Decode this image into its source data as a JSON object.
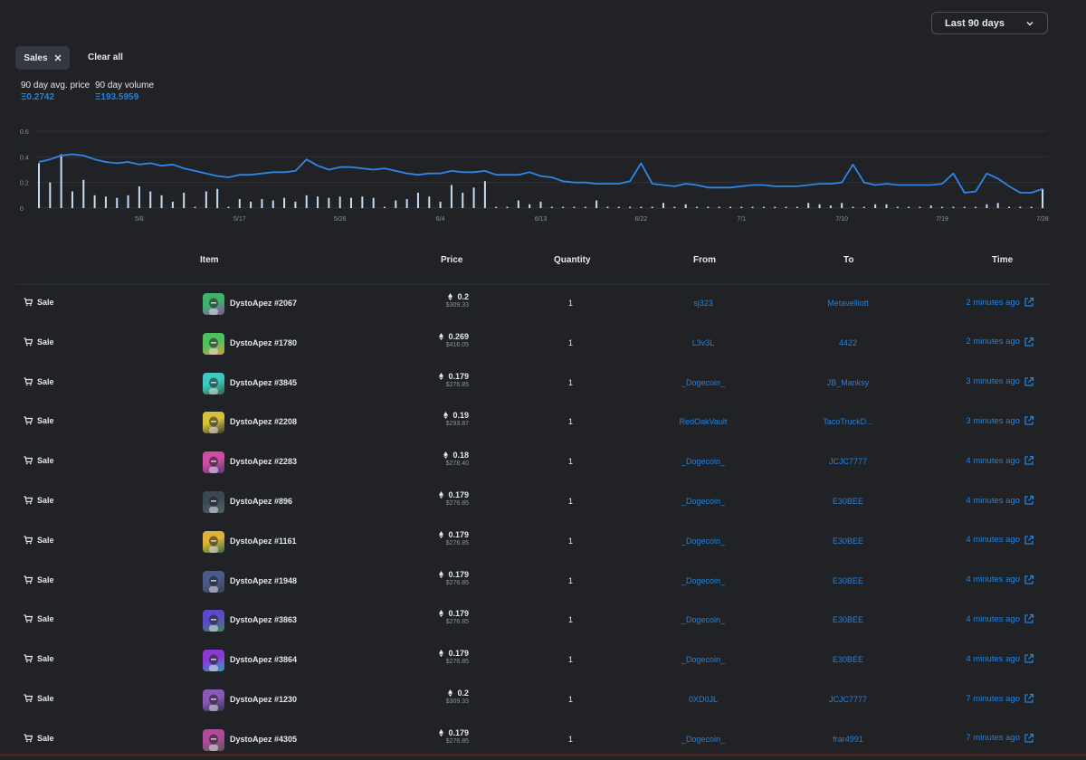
{
  "period_select": {
    "label": "Last 90 days"
  },
  "filter": {
    "chip_label": "Sales",
    "clear_label": "Clear all"
  },
  "stats": {
    "avg_label": "90 day avg. price",
    "avg_value": "Ξ0.2742",
    "vol_label": "90 day volume",
    "vol_value": "Ξ193.5959"
  },
  "colors": {
    "accent": "#2081e2",
    "bar": "#c4dcf8",
    "grid": "#2f3238",
    "line": "#2e86e8"
  },
  "chart_data": {
    "type": "line+bar",
    "y_ticks": [
      "0.6",
      "0.4",
      "0.2",
      "0"
    ],
    "ylim": [
      0,
      0.6
    ],
    "x_ticks": [
      "5/8",
      "5/17",
      "5/26",
      "6/4",
      "6/13",
      "6/22",
      "7/1",
      "7/10",
      "7/19",
      "7/28"
    ],
    "x_range": [
      0,
      90
    ],
    "x_tick_positions": [
      9,
      18,
      27,
      36,
      45,
      54,
      63,
      72,
      81,
      90
    ],
    "avg_price_line": [
      0.36,
      0.38,
      0.41,
      0.42,
      0.41,
      0.38,
      0.36,
      0.35,
      0.36,
      0.34,
      0.35,
      0.33,
      0.34,
      0.31,
      0.29,
      0.27,
      0.25,
      0.24,
      0.26,
      0.26,
      0.27,
      0.28,
      0.28,
      0.29,
      0.38,
      0.33,
      0.3,
      0.32,
      0.32,
      0.31,
      0.3,
      0.31,
      0.29,
      0.27,
      0.26,
      0.27,
      0.27,
      0.29,
      0.28,
      0.28,
      0.29,
      0.26,
      0.26,
      0.26,
      0.28,
      0.25,
      0.24,
      0.21,
      0.2,
      0.2,
      0.19,
      0.19,
      0.19,
      0.21,
      0.35,
      0.19,
      0.18,
      0.17,
      0.19,
      0.18,
      0.16,
      0.16,
      0.16,
      0.17,
      0.18,
      0.18,
      0.17,
      0.17,
      0.17,
      0.18,
      0.19,
      0.19,
      0.2,
      0.34,
      0.2,
      0.18,
      0.19,
      0.18,
      0.18,
      0.18,
      0.18,
      0.19,
      0.27,
      0.12,
      0.13,
      0.27,
      0.23,
      0.17,
      0.12,
      0.12,
      0.15
    ],
    "volume_bars": [
      0.35,
      0.2,
      0.42,
      0.13,
      0.22,
      0.1,
      0.09,
      0.08,
      0.1,
      0.17,
      0.13,
      0.1,
      0.05,
      0.12,
      0.01,
      0.13,
      0.15,
      0.01,
      0.07,
      0.05,
      0.07,
      0.06,
      0.08,
      0.05,
      0.1,
      0.09,
      0.08,
      0.09,
      0.08,
      0.09,
      0.08,
      0.01,
      0.06,
      0.07,
      0.12,
      0.09,
      0.05,
      0.18,
      0.12,
      0.16,
      0.21,
      0.01,
      0.01,
      0.06,
      0.03,
      0.05,
      0.01,
      0.01,
      0.01,
      0.01,
      0.06,
      0.01,
      0.01,
      0.01,
      0.01,
      0.01,
      0.04,
      0.01,
      0.03,
      0.01,
      0.01,
      0.01,
      0.01,
      0.01,
      0.01,
      0.01,
      0.01,
      0.01,
      0.01,
      0.04,
      0.03,
      0.02,
      0.04,
      0.01,
      0.01,
      0.03,
      0.03,
      0.01,
      0.01,
      0.01,
      0.02,
      0.01,
      0.01,
      0.01,
      0.01,
      0.03,
      0.04,
      0.01,
      0.01,
      0.01,
      0.15
    ]
  },
  "table": {
    "headers": {
      "item": "Item",
      "price": "Price",
      "quantity": "Quantity",
      "from": "From",
      "to": "To",
      "time": "Time"
    },
    "rows": [
      {
        "event": "Sale",
        "item": "DystoApez #2067",
        "price": "0.2",
        "usd": "$309.33",
        "qty": "1",
        "from": "sj323",
        "to": "Metavelliott",
        "time": "2 minutes ago",
        "c1": "#3fb36a",
        "c2": "#8b4ea8"
      },
      {
        "event": "Sale",
        "item": "DystoApez #1780",
        "price": "0.269",
        "usd": "$416.05",
        "qty": "1",
        "from": "L3v3L",
        "to": "4422",
        "time": "2 minutes ago",
        "c1": "#4cc05d",
        "c2": "#d8a03a"
      },
      {
        "event": "Sale",
        "item": "DystoApez #3845",
        "price": "0.179",
        "usd": "$276.85",
        "qty": "1",
        "from": "_Dogecoin_",
        "to": "JB_Manksy",
        "time": "3 minutes ago",
        "c1": "#3cc9c0",
        "c2": "#2f6a3e"
      },
      {
        "event": "Sale",
        "item": "DystoApez #2208",
        "price": "0.19",
        "usd": "$293.87",
        "qty": "1",
        "from": "RedOakVault",
        "to": "TacoTruckD...",
        "time": "3 minutes ago",
        "c1": "#d6c23a",
        "c2": "#3b3b3b"
      },
      {
        "event": "Sale",
        "item": "DystoApez #2283",
        "price": "0.18",
        "usd": "$278.40",
        "qty": "1",
        "from": "_Dogecoin_",
        "to": "JCJC7777",
        "time": "4 minutes ago",
        "c1": "#d04da3",
        "c2": "#5a3a7a"
      },
      {
        "event": "Sale",
        "item": "DystoApez #896",
        "price": "0.179",
        "usd": "$276.85",
        "qty": "1",
        "from": "_Dogecoin_",
        "to": "E30BEE",
        "time": "4 minutes ago",
        "c1": "#3a4a55",
        "c2": "#55606a"
      },
      {
        "event": "Sale",
        "item": "DystoApez #1161",
        "price": "0.179",
        "usd": "$276.85",
        "qty": "1",
        "from": "_Dogecoin_",
        "to": "E30BEE",
        "time": "4 minutes ago",
        "c1": "#e0b23a",
        "c2": "#3a6a45"
      },
      {
        "event": "Sale",
        "item": "DystoApez #1948",
        "price": "0.179",
        "usd": "$276.85",
        "qty": "1",
        "from": "_Dogecoin_",
        "to": "E30BEE",
        "time": "4 minutes ago",
        "c1": "#4a5a8a",
        "c2": "#3a4050"
      },
      {
        "event": "Sale",
        "item": "DystoApez #3863",
        "price": "0.179",
        "usd": "$276.85",
        "qty": "1",
        "from": "_Dogecoin_",
        "to": "E30BEE",
        "time": "4 minutes ago",
        "c1": "#5a4ac8",
        "c2": "#3a8a5a"
      },
      {
        "event": "Sale",
        "item": "DystoApez #3864",
        "price": "0.179",
        "usd": "$276.85",
        "qty": "1",
        "from": "_Dogecoin_",
        "to": "E30BEE",
        "time": "4 minutes ago",
        "c1": "#8a3ad0",
        "c2": "#2aa0c0"
      },
      {
        "event": "Sale",
        "item": "DystoApez #1230",
        "price": "0.2",
        "usd": "$309.33",
        "qty": "1",
        "from": "0XD0JL",
        "to": "JCJC7777",
        "time": "7 minutes ago",
        "c1": "#8a5ab8",
        "c2": "#3a3050"
      },
      {
        "event": "Sale",
        "item": "DystoApez #4305",
        "price": "0.179",
        "usd": "$276.85",
        "qty": "1",
        "from": "_Dogecoin_",
        "to": "frar4991",
        "time": "7 minutes ago",
        "c1": "#b04a9a",
        "c2": "#5a5a5a"
      }
    ]
  }
}
